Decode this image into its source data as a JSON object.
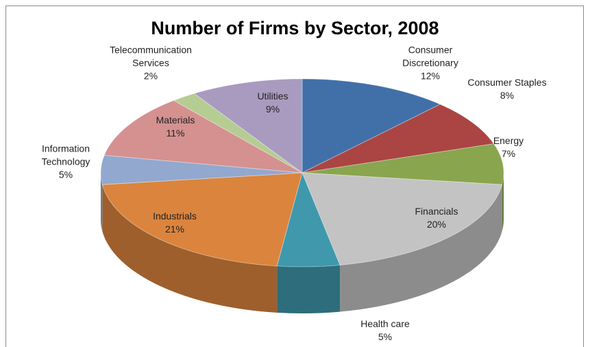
{
  "chart_data": {
    "type": "pie",
    "title": "Number of Firms by Sector, 2008",
    "categories": [
      "Consumer Discretionary",
      "Consumer Staples",
      "Energy",
      "Financials",
      "Health care",
      "Industrials",
      "Information Technology",
      "Materials",
      "Telecommunication Services",
      "Utilities"
    ],
    "values": [
      12,
      8,
      7,
      20,
      5,
      21,
      5,
      11,
      2,
      9
    ],
    "value_labels": [
      "12%",
      "8%",
      "7%",
      "20%",
      "5%",
      "21%",
      "5%",
      "11%",
      "2%",
      "9%"
    ],
    "colors": [
      "#4170a8",
      "#aa4543",
      "#89a54e",
      "#c3c3c3",
      "#3f98ac",
      "#db843d",
      "#92a8cf",
      "#d49190",
      "#b5cc92",
      "#a89bbf"
    ]
  }
}
